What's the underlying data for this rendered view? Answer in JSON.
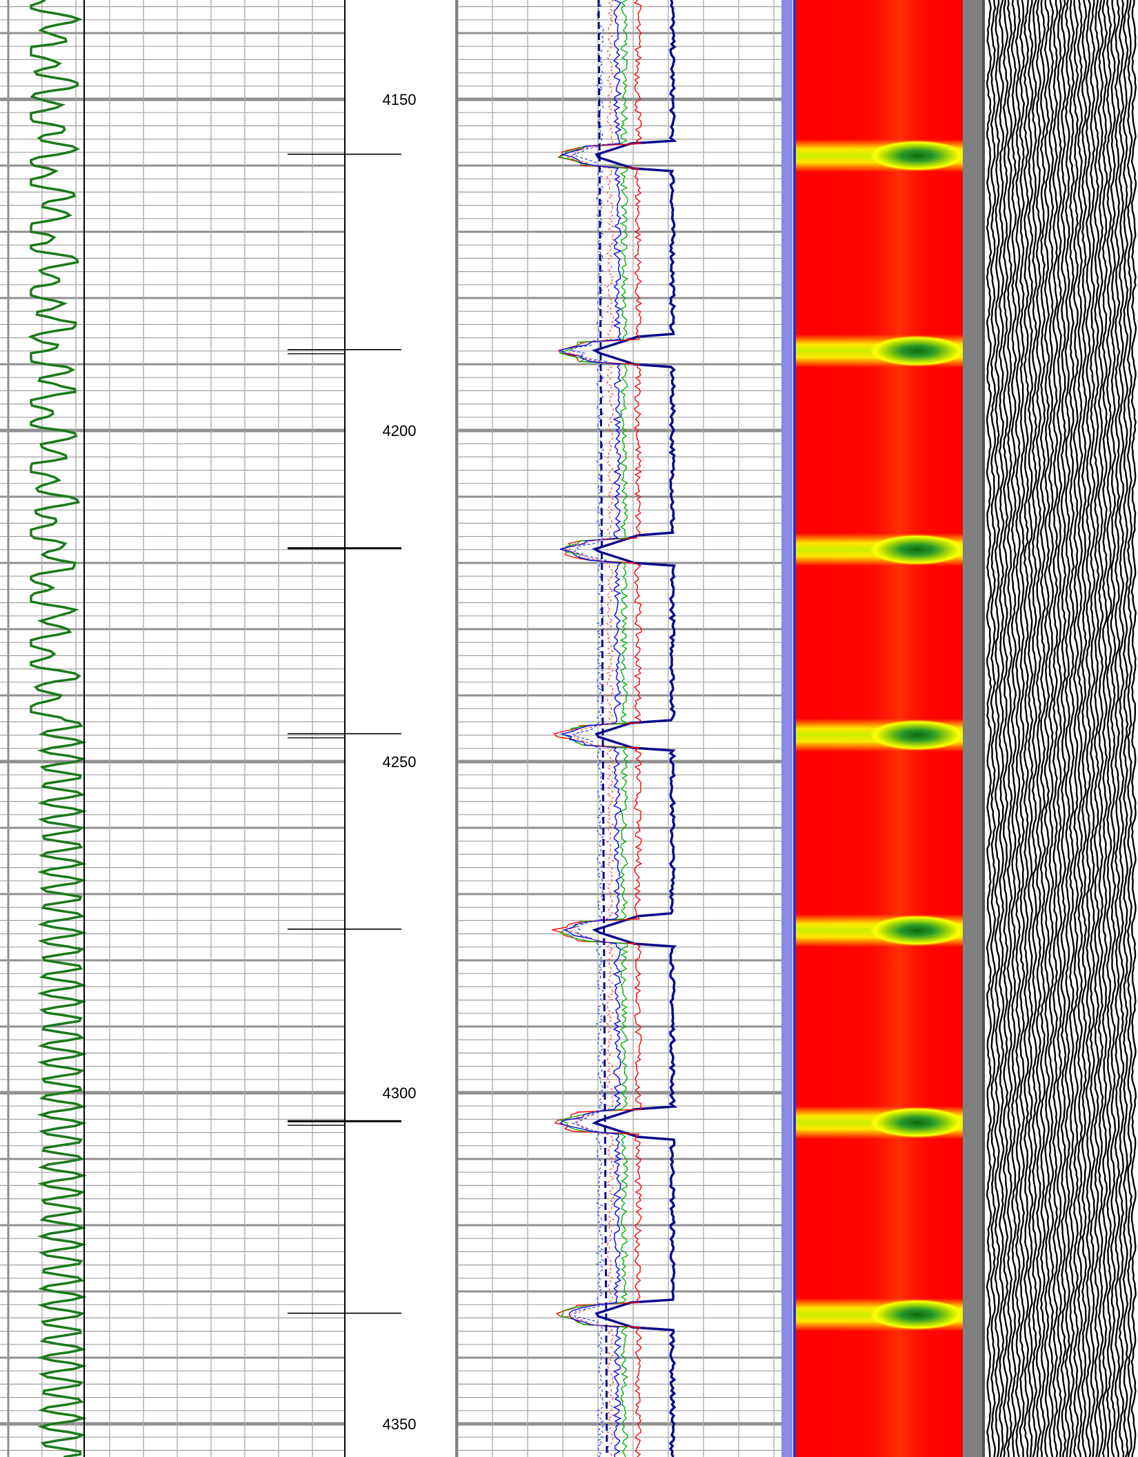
{
  "chart_data": {
    "type": "line",
    "depth": {
      "top": 4135,
      "bottom": 4355,
      "labels": [
        {
          "text": "4150",
          "value": 4150
        },
        {
          "text": "4200",
          "value": 4200
        },
        {
          "text": "4250",
          "value": 4250
        },
        {
          "text": "4300",
          "value": 4300
        },
        {
          "text": "4350",
          "value": 4350
        }
      ],
      "major_step": 10,
      "minor_step": 2
    },
    "events": [
      4158.5,
      4188,
      4218,
      4246,
      4275.5,
      4304.5,
      4333.5
    ],
    "tracks": [
      {
        "id": "gamma",
        "curve_color": "#1a7a1a",
        "grid": true
      },
      {
        "id": "depth",
        "tick_color": "#000000"
      },
      {
        "id": "waveform_curves",
        "grid": true,
        "series_colors": [
          "#0a0a8c",
          "#ff0000",
          "#00b000",
          "#0000ff",
          "#ff4040",
          "#2040ff"
        ]
      },
      {
        "id": "spectrum",
        "background": "#ff0000",
        "highlight": [
          "#ffff00",
          "#2a9a2a",
          "#0d6a0d"
        ]
      },
      {
        "id": "seismic",
        "trace_color": "#000000",
        "background": "#ffffff"
      }
    ]
  }
}
